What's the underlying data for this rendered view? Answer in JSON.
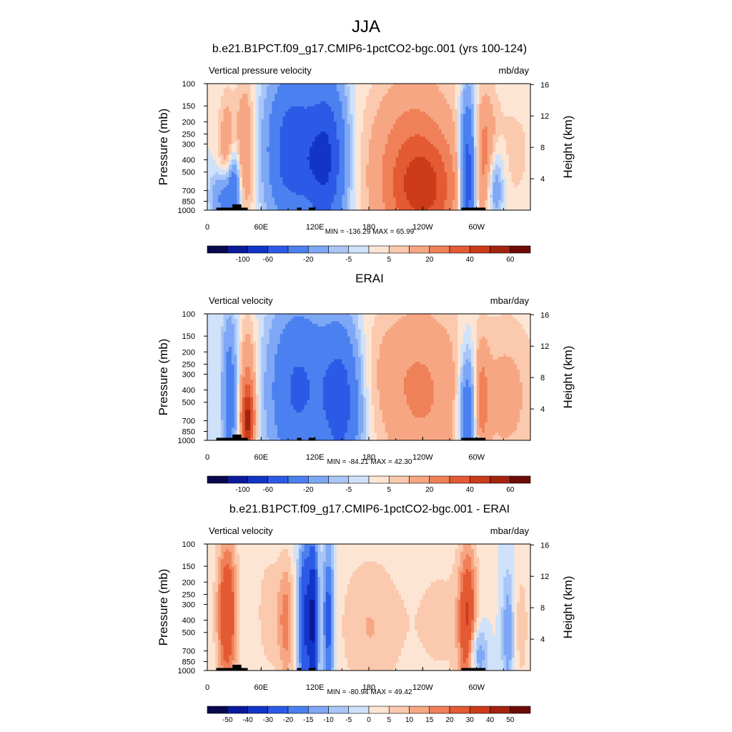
{
  "figure": {
    "title": "JJA"
  },
  "scales": {
    "full": {
      "labels": [
        "-100",
        "-60",
        "-20",
        "-5",
        "5",
        "20",
        "40",
        "60"
      ],
      "colors": [
        "#08084d",
        "#0a1a9a",
        "#1234c8",
        "#2c5ae6",
        "#4b80f0",
        "#7ea8f5",
        "#a9c6f7",
        "#d0e2fa",
        "#fde5d4",
        "#fbc9ad",
        "#f7a683",
        "#f08058",
        "#e35a33",
        "#cc3b1a",
        "#a4230f",
        "#6e0b08"
      ]
    },
    "diff": {
      "labels": [
        "-50",
        "-40",
        "-30",
        "-20",
        "-15",
        "-10",
        "-5",
        "0",
        "5",
        "10",
        "15",
        "20",
        "30",
        "40",
        "50"
      ],
      "colors": [
        "#08084d",
        "#0a1a9a",
        "#1234c8",
        "#2c5ae6",
        "#4b80f0",
        "#7ea8f5",
        "#a9c6f7",
        "#d0e2fa",
        "#fde5d4",
        "#fbc9ad",
        "#f7a683",
        "#f08058",
        "#e35a33",
        "#cc3b1a",
        "#a4230f",
        "#6e0b08"
      ]
    }
  },
  "axes": {
    "pressure_label": "Pressure (mb)",
    "height_label": "Height (km)",
    "pressure_ticks": [
      "100",
      "150",
      "200",
      "250",
      "300",
      "400",
      "500",
      "700",
      "850",
      "1000"
    ],
    "height_ticks": [
      "16",
      "12",
      "8",
      "4"
    ],
    "lon_ticks": [
      "0",
      "60E",
      "120E",
      "180",
      "120W",
      "60W"
    ]
  },
  "chart_data": [
    {
      "type": "heatmap",
      "title": "b.e21.B1PCT.f09_g17.CMIP6-1pctCO2-bgc.001 (yrs 100-124)",
      "left_label": "Vertical pressure velocity",
      "units": "mb/day",
      "stats": "MIN = -136.29  MAX =  65.99",
      "scale": "full",
      "xlim": [
        0,
        360
      ],
      "ylim": [
        1000,
        100
      ],
      "features": [
        {
          "lon": 22,
          "p": 330,
          "v": 18,
          "sx": 7,
          "sy": 0.7
        },
        {
          "lon": 42,
          "p": 350,
          "v": 22,
          "sx": 7,
          "sy": 0.9
        },
        {
          "lon": 20,
          "p": 780,
          "v": -30,
          "sx": 10,
          "sy": 0.35
        },
        {
          "lon": 30,
          "p": 600,
          "v": -25,
          "sx": 5,
          "sy": 0.5
        },
        {
          "lon": 90,
          "p": 330,
          "v": -40,
          "sx": 18,
          "sy": 1.0
        },
        {
          "lon": 135,
          "p": 380,
          "v": -45,
          "sx": 14,
          "sy": 1.0
        },
        {
          "lon": 115,
          "p": 420,
          "v": -30,
          "sx": 20,
          "sy": 1.0
        },
        {
          "lon": 100,
          "p": 880,
          "v": 8,
          "sx": 12,
          "sy": 0.2
        },
        {
          "lon": 230,
          "p": 500,
          "v": 30,
          "sx": 35,
          "sy": 1.2
        },
        {
          "lon": 245,
          "p": 700,
          "v": 20,
          "sx": 25,
          "sy": 0.6
        },
        {
          "lon": 290,
          "p": 550,
          "v": -60,
          "sx": 6,
          "sy": 1.0
        },
        {
          "lon": 310,
          "p": 400,
          "v": 22,
          "sx": 8,
          "sy": 0.8
        },
        {
          "lon": 320,
          "p": 650,
          "v": -25,
          "sx": 7,
          "sy": 0.5
        },
        {
          "lon": 340,
          "p": 350,
          "v": 6,
          "sx": 25,
          "sy": 1.0
        }
      ]
    },
    {
      "type": "heatmap",
      "title": "ERAI",
      "left_label": "Vertical velocity",
      "units": "mbar/day",
      "stats": "MIN = -84.21  MAX =  42.30",
      "scale": "full",
      "xlim": [
        0,
        360
      ],
      "ylim": [
        1000,
        100
      ],
      "features": [
        {
          "lon": 25,
          "p": 450,
          "v": -30,
          "sx": 6,
          "sy": 1.0
        },
        {
          "lon": 45,
          "p": 450,
          "v": 25,
          "sx": 7,
          "sy": 0.9
        },
        {
          "lon": 45,
          "p": 720,
          "v": 35,
          "sx": 5,
          "sy": 0.4
        },
        {
          "lon": 95,
          "p": 420,
          "v": -30,
          "sx": 20,
          "sy": 1.1
        },
        {
          "lon": 150,
          "p": 500,
          "v": -45,
          "sx": 15,
          "sy": 1.0
        },
        {
          "lon": 120,
          "p": 350,
          "v": -20,
          "sx": 25,
          "sy": 1.0
        },
        {
          "lon": 240,
          "p": 450,
          "v": 20,
          "sx": 35,
          "sy": 1.2
        },
        {
          "lon": 290,
          "p": 600,
          "v": -40,
          "sx": 7,
          "sy": 0.8
        },
        {
          "lon": 305,
          "p": 500,
          "v": 20,
          "sx": 6,
          "sy": 0.7
        },
        {
          "lon": 335,
          "p": 450,
          "v": 12,
          "sx": 25,
          "sy": 1.1
        },
        {
          "lon": 190,
          "p": 250,
          "v": 5,
          "sx": 40,
          "sy": 0.8
        }
      ]
    },
    {
      "type": "heatmap",
      "title": "b.e21.B1PCT.f09_g17.CMIP6-1pctCO2-bgc.001 - ERAI",
      "left_label": "Vertical velocity",
      "units": "mbar/day",
      "stats": "MIN = -80.94  MAX =  49.42",
      "scale": "diff",
      "xlim": [
        0,
        360
      ],
      "ylim": [
        1000,
        100
      ],
      "features": [
        {
          "lon": 22,
          "p": 350,
          "v": 30,
          "sx": 8,
          "sy": 1.0
        },
        {
          "lon": 70,
          "p": 350,
          "v": 8,
          "sx": 12,
          "sy": 0.9
        },
        {
          "lon": 88,
          "p": 420,
          "v": 16,
          "sx": 6,
          "sy": 0.8
        },
        {
          "lon": 108,
          "p": 400,
          "v": -30,
          "sx": 5,
          "sy": 1.1
        },
        {
          "lon": 118,
          "p": 400,
          "v": -40,
          "sx": 4,
          "sy": 1.1
        },
        {
          "lon": 135,
          "p": 400,
          "v": -25,
          "sx": 5,
          "sy": 1.1
        },
        {
          "lon": 180,
          "p": 450,
          "v": 10,
          "sx": 25,
          "sy": 1.0
        },
        {
          "lon": 260,
          "p": 400,
          "v": 6,
          "sx": 30,
          "sy": 1.2
        },
        {
          "lon": 290,
          "p": 450,
          "v": 30,
          "sx": 7,
          "sy": 1.0
        },
        {
          "lon": 300,
          "p": 750,
          "v": -20,
          "sx": 8,
          "sy": 0.4
        },
        {
          "lon": 335,
          "p": 500,
          "v": -15,
          "sx": 5,
          "sy": 0.8
        },
        {
          "lon": 350,
          "p": 450,
          "v": 8,
          "sx": 6,
          "sy": 0.8
        }
      ]
    }
  ]
}
